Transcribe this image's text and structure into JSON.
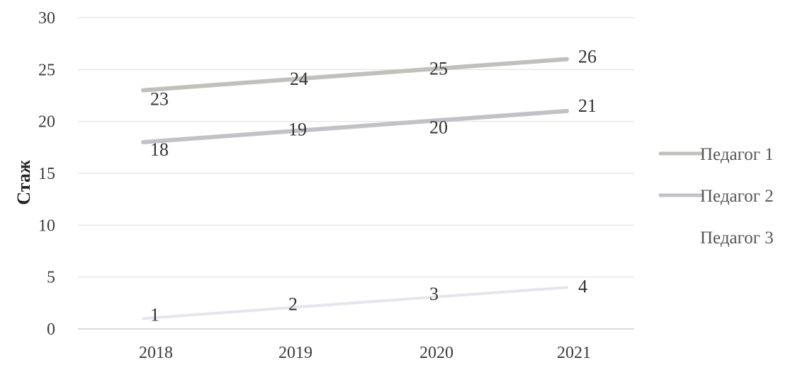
{
  "chart_data": {
    "type": "line",
    "title": "",
    "xlabel": "",
    "ylabel": "Стаж",
    "categories": [
      "2018",
      "2019",
      "2020",
      "2021"
    ],
    "ylim": [
      0,
      30
    ],
    "yticks": [
      0,
      5,
      10,
      15,
      20,
      25,
      30
    ],
    "grid": true,
    "legend_position": "right",
    "series": [
      {
        "name": "Педагог 1",
        "values": [
          23,
          24,
          25,
          26
        ],
        "color": "#bfc2bc",
        "labels": [
          "23",
          "24",
          "25",
          "26"
        ]
      },
      {
        "name": "Педагог 2",
        "values": [
          18,
          19,
          20,
          21
        ],
        "color": "#c3c1c6",
        "labels": [
          "18",
          "19",
          "20",
          "21"
        ]
      },
      {
        "name": "Педагог 3",
        "values": [
          1,
          2,
          3,
          4
        ],
        "color": "#e7e5ec",
        "labels": [
          "1",
          "2",
          "3",
          "4"
        ]
      }
    ]
  }
}
